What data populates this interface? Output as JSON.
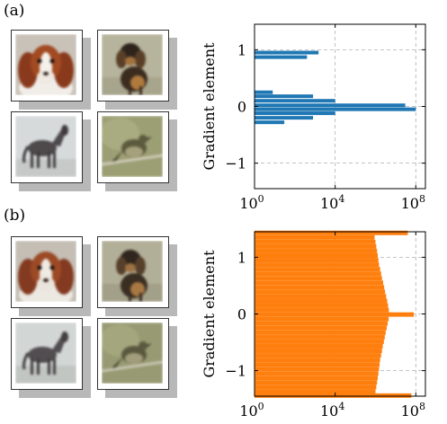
{
  "panels": [
    {
      "label": "(a)",
      "images": [
        {
          "subject": "dog",
          "variant": "spaniel-white"
        },
        {
          "subject": "dog",
          "variant": "terrier-dark"
        },
        {
          "subject": "horse",
          "variant": "grey"
        },
        {
          "subject": "bird",
          "variant": "perched"
        }
      ],
      "colors": {
        "bar": "#1f77b4"
      }
    },
    {
      "label": "(b)",
      "images": [
        {
          "subject": "dog",
          "variant": "spaniel-white"
        },
        {
          "subject": "dog",
          "variant": "terrier-dark"
        },
        {
          "subject": "horse",
          "variant": "grey"
        },
        {
          "subject": "bird",
          "variant": "perched"
        }
      ],
      "colors": {
        "bar": "#ff7f0e"
      }
    }
  ],
  "chart_data": [
    {
      "type": "bar",
      "orientation": "horizontal",
      "xscale": "log",
      "xlim": [
        1,
        300000000
      ],
      "ylim": [
        -1.45,
        1.45
      ],
      "xticks": [
        {
          "value": 1,
          "base": "10",
          "exp": "0"
        },
        {
          "value": 10000,
          "base": "10",
          "exp": "4"
        },
        {
          "value": 100000000,
          "base": "10",
          "exp": "8"
        }
      ],
      "yticks": [
        {
          "value": 1,
          "label": "1"
        },
        {
          "value": 0,
          "label": "0"
        },
        {
          "value": -1,
          "label": "−1"
        }
      ],
      "ylabel": "Gradient element",
      "grid": true,
      "bar_color": "#1f77b4",
      "bars": [
        {
          "y": 0.95,
          "x": 1500
        },
        {
          "y": 0.87,
          "x": 400
        },
        {
          "y": 0.25,
          "x": 8
        },
        {
          "y": 0.18,
          "x": 800
        },
        {
          "y": 0.1,
          "x": 10000
        },
        {
          "y": 0.02,
          "x": 30000000
        },
        {
          "y": -0.05,
          "x": 100000000
        },
        {
          "y": -0.12,
          "x": 10000
        },
        {
          "y": -0.2,
          "x": 800
        },
        {
          "y": -0.28,
          "x": 30
        }
      ]
    },
    {
      "type": "bar",
      "orientation": "horizontal",
      "xscale": "log",
      "xlim": [
        1,
        300000000
      ],
      "ylim": [
        -1.45,
        1.45
      ],
      "xticks": [
        {
          "value": 1,
          "base": "10",
          "exp": "0"
        },
        {
          "value": 10000,
          "base": "10",
          "exp": "4"
        },
        {
          "value": 100000000,
          "base": "10",
          "exp": "8"
        }
      ],
      "yticks": [
        {
          "value": 1,
          "label": "1"
        },
        {
          "value": 0,
          "label": "0"
        },
        {
          "value": -1,
          "label": "−1"
        }
      ],
      "ylabel": "Gradient element",
      "grid": true,
      "bar_color": "#ff7f0e",
      "bars": [
        {
          "y": 1.43,
          "x": 40000000
        },
        {
          "y": 1.35,
          "x": 900000
        },
        {
          "y": 1.27,
          "x": 1000000
        },
        {
          "y": 1.19,
          "x": 1100000
        },
        {
          "y": 1.11,
          "x": 1200000
        },
        {
          "y": 1.03,
          "x": 1300000
        },
        {
          "y": 0.95,
          "x": 1400000
        },
        {
          "y": 0.87,
          "x": 1500000
        },
        {
          "y": 0.79,
          "x": 1700000
        },
        {
          "y": 0.71,
          "x": 1900000
        },
        {
          "y": 0.63,
          "x": 2100000
        },
        {
          "y": 0.55,
          "x": 2400000
        },
        {
          "y": 0.47,
          "x": 2700000
        },
        {
          "y": 0.39,
          "x": 3000000
        },
        {
          "y": 0.31,
          "x": 3400000
        },
        {
          "y": 0.23,
          "x": 3800000
        },
        {
          "y": 0.15,
          "x": 4200000
        },
        {
          "y": 0.07,
          "x": 4600000
        },
        {
          "y": -0.01,
          "x": 80000000
        },
        {
          "y": -0.09,
          "x": 4500000
        },
        {
          "y": -0.17,
          "x": 4000000
        },
        {
          "y": -0.25,
          "x": 3600000
        },
        {
          "y": -0.33,
          "x": 3200000
        },
        {
          "y": -0.41,
          "x": 2900000
        },
        {
          "y": -0.49,
          "x": 2600000
        },
        {
          "y": -0.57,
          "x": 2300000
        },
        {
          "y": -0.65,
          "x": 2100000
        },
        {
          "y": -0.73,
          "x": 1900000
        },
        {
          "y": -0.81,
          "x": 1700000
        },
        {
          "y": -0.89,
          "x": 1600000
        },
        {
          "y": -0.97,
          "x": 1500000
        },
        {
          "y": -1.05,
          "x": 1400000
        },
        {
          "y": -1.13,
          "x": 1300000
        },
        {
          "y": -1.21,
          "x": 1200000
        },
        {
          "y": -1.29,
          "x": 1100000
        },
        {
          "y": -1.37,
          "x": 1000000
        },
        {
          "y": -1.44,
          "x": 60000000
        }
      ]
    }
  ]
}
